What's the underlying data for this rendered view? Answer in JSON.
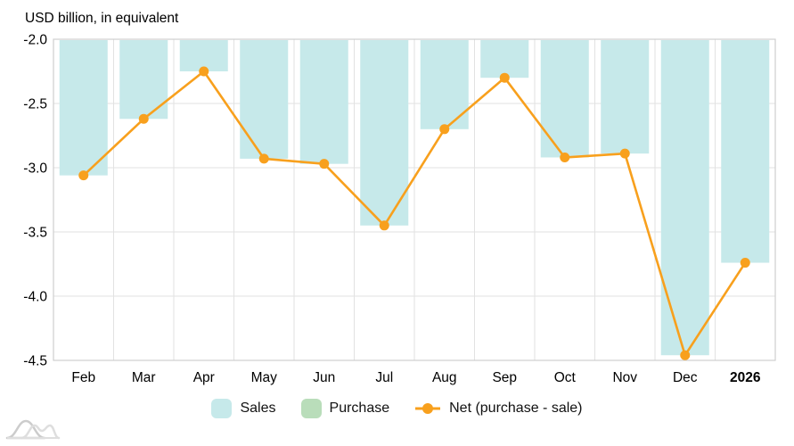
{
  "title": "USD billion, in equivalent",
  "colors": {
    "sales": "#c6e9ea",
    "purchase": "#b9ddba",
    "net": "#f8a01d",
    "grid": "#e2e2e2",
    "border": "#cfcfcf",
    "text": "#000000",
    "watermark_dark": "#cccccc",
    "watermark_light": "#dedede"
  },
  "legend": {
    "items": [
      {
        "label": "Sales",
        "marker": "swatch"
      },
      {
        "label": "Purchase",
        "marker": "swatch"
      },
      {
        "label": "Net (purchase - sale)",
        "marker": "line-dot"
      }
    ]
  },
  "chart_data": {
    "type": "bar+line",
    "title": "USD billion, in equivalent",
    "categories": [
      "Feb",
      "Mar",
      "Apr",
      "May",
      "Jun",
      "Jul",
      "Aug",
      "Sep",
      "Oct",
      "Nov",
      "Dec",
      "2026"
    ],
    "bold_categories": [
      "2026"
    ],
    "series": [
      {
        "name": "Sales",
        "type": "bar",
        "values": [
          -3.06,
          -2.62,
          -2.25,
          -2.93,
          -2.97,
          -3.45,
          -2.7,
          -2.3,
          -2.92,
          -2.89,
          -4.46,
          -3.74
        ]
      },
      {
        "name": "Purchase",
        "type": "bar",
        "values": [
          0,
          0,
          0,
          0,
          0,
          0,
          0,
          0,
          0,
          0,
          0,
          0
        ]
      },
      {
        "name": "Net (purchase - sale)",
        "type": "line",
        "values": [
          -3.06,
          -2.62,
          -2.25,
          -2.93,
          -2.97,
          -3.45,
          -2.7,
          -2.3,
          -2.92,
          -2.89,
          -4.46,
          -3.74
        ]
      }
    ],
    "ylabel": "",
    "xlabel": "",
    "ylim": [
      -4.5,
      -2.0
    ],
    "yticks": [
      -2.0,
      -2.5,
      -3.0,
      -3.5,
      -4.0,
      -4.5
    ],
    "grid": true,
    "legend_position": "bottom"
  }
}
